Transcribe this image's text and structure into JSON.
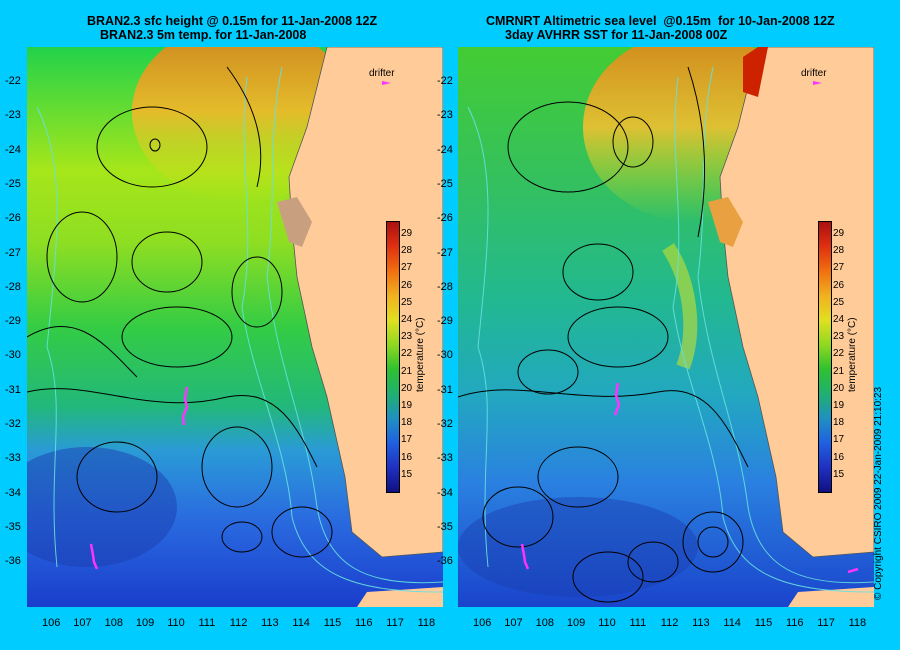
{
  "left_panel": {
    "title_line1": "BRAN2.3 sfc height @ 0.15m for 11-Jan-2008 12Z",
    "title_line2": "BRAN2.3 5m temp. for 11-Jan-2008"
  },
  "right_panel": {
    "title_line1": "CMRNRT Altimetric sea level  @0.15m  for 10-Jan-2008 12Z",
    "title_line2": "3day AVHRR SST for 11-Jan-2008 00Z"
  },
  "latitude_labels": [
    "-22",
    "-23",
    "-24",
    "-25",
    "-26",
    "-27",
    "-28",
    "-29",
    "-30",
    "-31",
    "-32",
    "-33",
    "-34",
    "-35",
    "-36"
  ],
  "longitude_labels": [
    "106",
    "107",
    "108",
    "109",
    "110",
    "111",
    "112",
    "113",
    "114",
    "115",
    "116",
    "117",
    "118"
  ],
  "legend": {
    "drifter_label": "drifter"
  },
  "colorbar": {
    "title": "temperature (°C)",
    "labels": [
      "29",
      "28",
      "27",
      "26",
      "25",
      "24",
      "23",
      "22",
      "21",
      "20",
      "19",
      "18",
      "17",
      "16",
      "15"
    ]
  },
  "copyright": "© Copyright CSIRO 2009   22-Jan-2009 21:10:23",
  "colors": {
    "background": "#00ccff",
    "land": "#ffcc99",
    "drifter": "#ff33ff",
    "contour": "#000000",
    "bathymetry": "#66e0e0"
  }
}
